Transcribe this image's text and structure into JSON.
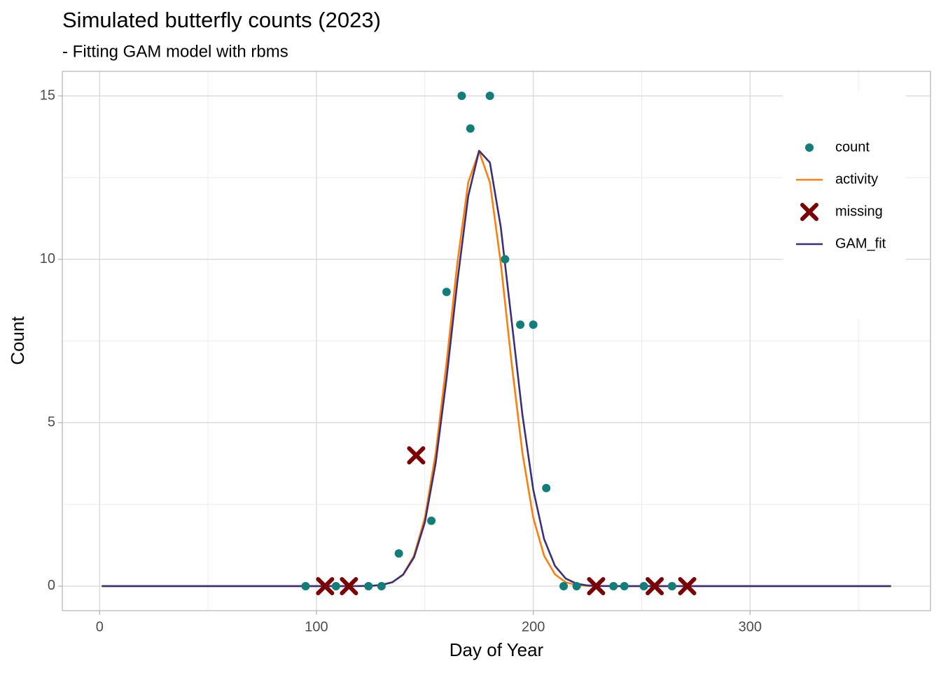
{
  "chart_data": {
    "type": "line",
    "title": "Simulated butterfly counts (2023)",
    "subtitle": "- Fitting GAM model with rbms",
    "x_label": "Day of Year",
    "y_label": "Count",
    "xlim": [
      -17.2,
      383.2
    ],
    "ylim": [
      -0.75,
      15.75
    ],
    "xticks": [
      0,
      100,
      200,
      300
    ],
    "yticks": [
      0,
      5,
      10,
      15
    ],
    "grid": true,
    "minor_grid": true,
    "legend_position": "top-right",
    "series": [
      {
        "name": "count",
        "geom": "point",
        "color": "#137d7a",
        "x": [
          95,
          109,
          124,
          130,
          138,
          153,
          160,
          167,
          171,
          180,
          187,
          194,
          200,
          206,
          214,
          220,
          237,
          242,
          251,
          264
        ],
        "values": [
          0,
          0,
          0,
          0,
          1,
          2,
          9,
          15,
          14,
          15,
          10,
          8,
          8,
          3,
          0,
          0,
          0,
          0,
          0,
          0
        ]
      },
      {
        "name": "activity",
        "geom": "line",
        "color": "#ff7f0e",
        "x": [
          1,
          50,
          100,
          110,
          120,
          125,
          130,
          135,
          140,
          145,
          150,
          155,
          160,
          165,
          170,
          175,
          180,
          185,
          190,
          195,
          200,
          205,
          210,
          215,
          220,
          225,
          230,
          240,
          250,
          300,
          365
        ],
        "values": [
          0,
          0,
          0,
          0,
          0.002,
          0.008,
          0.033,
          0.117,
          0.36,
          0.93,
          2.09,
          4.07,
          6.83,
          9.89,
          12.35,
          13.3,
          12.35,
          9.89,
          6.83,
          4.07,
          2.09,
          0.93,
          0.36,
          0.117,
          0.033,
          0.008,
          0.002,
          0,
          0,
          0,
          0
        ]
      },
      {
        "name": "missing",
        "geom": "cross",
        "color": "#7a0000",
        "x": [
          104,
          115,
          146,
          229,
          256,
          271
        ],
        "values": [
          0,
          0,
          4,
          0,
          0,
          0
        ]
      },
      {
        "name": "GAM_fit",
        "geom": "line",
        "color": "#3b2f7a",
        "x": [
          1,
          50,
          100,
          110,
          120,
          125,
          130,
          135,
          140,
          145,
          150,
          155,
          160,
          165,
          170,
          175,
          180,
          185,
          190,
          195,
          200,
          205,
          210,
          215,
          220,
          225,
          230,
          240,
          250,
          300,
          365
        ],
        "values": [
          0,
          0,
          0,
          0,
          0.002,
          0.009,
          0.036,
          0.119,
          0.35,
          0.88,
          1.95,
          3.77,
          6.35,
          9.32,
          11.93,
          13.32,
          12.96,
          10.99,
          8.13,
          5.24,
          2.95,
          1.44,
          0.62,
          0.23,
          0.075,
          0.021,
          0.005,
          0,
          0,
          0,
          0
        ]
      }
    ]
  }
}
